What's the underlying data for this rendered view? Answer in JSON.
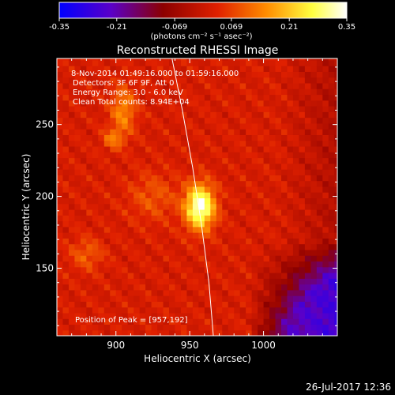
{
  "chart_data": {
    "type": "heatmap",
    "title": "Reconstructed RHESSI Image",
    "xlabel": "Heliocentric X (arcsec)",
    "ylabel": "Heliocentric Y (arcsec)",
    "xlim": [
      860,
      1050
    ],
    "ylim": [
      103,
      296
    ],
    "x_ticks": [
      900,
      950,
      1000
    ],
    "y_ticks": [
      150,
      200,
      250
    ],
    "colorbar": {
      "range": [
        -0.35,
        0.35
      ],
      "ticks": [
        "-0.35",
        "-0.21",
        "-0.069",
        "0.069",
        "0.21",
        "0.35"
      ],
      "units": "(photons cm⁻² s⁻¹ asec⁻²)",
      "stops": [
        "#0000ff",
        "#5a00c8",
        "#8c0000",
        "#e02000",
        "#ff8c00",
        "#ffff40",
        "#ffffff"
      ]
    },
    "annotations": [
      "8-Nov-2014 01:49:16.000 to 01:59:16.000",
      "Detectors: 3F 6F 9F, Att 0",
      "Energy Range: 3.0 - 6.0 keV",
      "Clean    Total counts: 8.94E+04"
    ],
    "peak_label": "Position of Peak = [957,192]",
    "peak": {
      "x": 957,
      "y": 192,
      "value": 0.35
    },
    "sources": [
      {
        "x": 957,
        "y": 193,
        "sx": 7,
        "sy": 11,
        "value": 0.33
      },
      {
        "x": 905,
        "y": 260,
        "sx": 6,
        "sy": 12,
        "value": 0.13
      },
      {
        "x": 898,
        "y": 240,
        "sx": 5,
        "sy": 5,
        "value": 0.1
      },
      {
        "x": 880,
        "y": 160,
        "sx": 8,
        "sy": 8,
        "value": 0.08
      },
      {
        "x": 925,
        "y": 200,
        "sx": 12,
        "sy": 12,
        "value": 0.07
      }
    ],
    "limb_points": [
      [
        938,
        296
      ],
      [
        945,
        260
      ],
      [
        952,
        220
      ],
      [
        958,
        180
      ],
      [
        963,
        140
      ],
      [
        966,
        103
      ]
    ]
  },
  "footer": {
    "timestamp": "26-Jul-2017 12:36"
  }
}
